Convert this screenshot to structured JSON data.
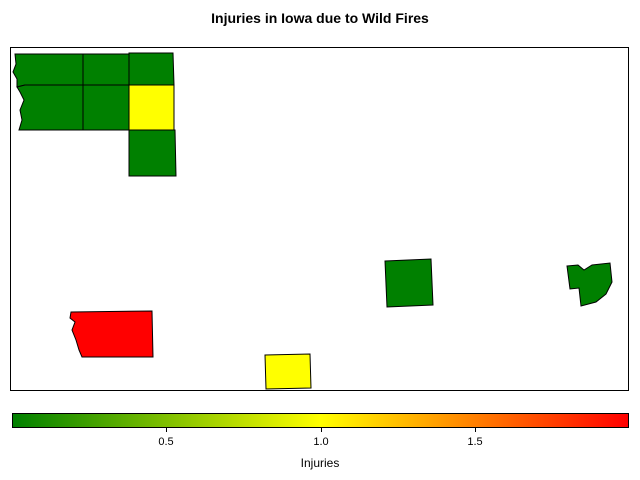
{
  "title": "Injuries in Iowa due to Wild Fires",
  "legend": {
    "label": "Injuries",
    "range": [
      0,
      2
    ],
    "ticks": [
      "0.5",
      "1.0",
      "1.5"
    ],
    "tick_values": [
      0.5,
      1.0,
      1.5
    ],
    "colors": [
      "#008000",
      "#ffff00",
      "#ff0000"
    ]
  },
  "counties": [
    {
      "id": "county-nw-1",
      "injuries": 0
    },
    {
      "id": "county-nw-2",
      "injuries": 0
    },
    {
      "id": "county-nw-3",
      "injuries": 0
    },
    {
      "id": "county-nw-4",
      "injuries": 0
    },
    {
      "id": "county-nw-5",
      "injuries": 0
    },
    {
      "id": "county-nw-6",
      "injuries": 1
    },
    {
      "id": "county-nw-7",
      "injuries": 0
    },
    {
      "id": "county-sw-1",
      "injuries": 2
    },
    {
      "id": "county-s-1",
      "injuries": 1
    },
    {
      "id": "county-se-1",
      "injuries": 0
    },
    {
      "id": "county-e-1",
      "injuries": 0
    }
  ]
}
